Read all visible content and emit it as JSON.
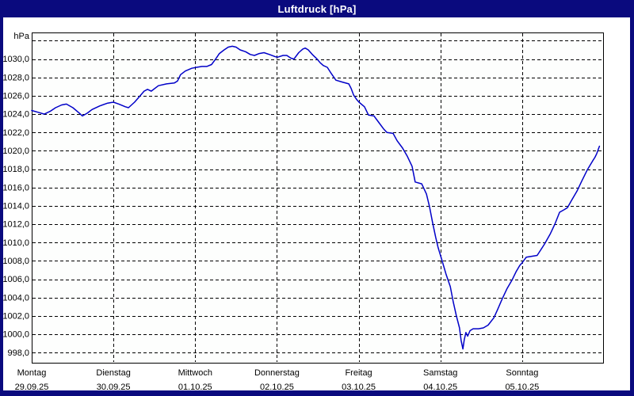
{
  "window": {
    "title": "Luftdruck [hPa]"
  },
  "axis": {
    "unit_label": "hPa",
    "y_tick_labels": [
      "1030,0",
      "1028,0",
      "1026,0",
      "1024,0",
      "1022,0",
      "1020,0",
      "1018,0",
      "1016,0",
      "1014,0",
      "1012,0",
      "1010,0",
      "1008,0",
      "1006,0",
      "1004,0",
      "1002,0",
      "1000,0",
      "998,0"
    ],
    "x_days": [
      {
        "name": "Montag",
        "date": "29.09.25"
      },
      {
        "name": "Dienstag",
        "date": "30.09.25"
      },
      {
        "name": "Mittwoch",
        "date": "01.10.25"
      },
      {
        "name": "Donnerstag",
        "date": "02.10.25"
      },
      {
        "name": "Freitag",
        "date": "03.10.25"
      },
      {
        "name": "Samstag",
        "date": "04.10.25"
      },
      {
        "name": "Sonntag",
        "date": "05.10.25"
      }
    ]
  },
  "chart_data": {
    "type": "line",
    "title": "Luftdruck [hPa]",
    "ylabel": "hPa",
    "x_unit": "hours since Montag 29.09.25 00:00",
    "xlim": [
      0,
      168
    ],
    "ylim": [
      996.9,
      1032.9
    ],
    "y_gridlines": [
      998,
      1000,
      1002,
      1004,
      1006,
      1008,
      1010,
      1012,
      1014,
      1016,
      1018,
      1020,
      1022,
      1024,
      1026,
      1028,
      1030,
      1032
    ],
    "x_gridlines_hours": [
      24,
      48,
      72,
      96,
      120,
      144
    ],
    "grid_on": true,
    "legend": "none",
    "line_color": "#0000c8",
    "title_bar_color": "#0a0a7e",
    "plot_bg_color": "#fdfefd",
    "points": [
      [
        0,
        1024.4
      ],
      [
        1.9,
        1024.2
      ],
      [
        3.7,
        1024.0
      ],
      [
        5.4,
        1024.3
      ],
      [
        7,
        1024.7
      ],
      [
        8.8,
        1025.0
      ],
      [
        10.2,
        1025.1
      ],
      [
        12.1,
        1024.7
      ],
      [
        14,
        1024.1
      ],
      [
        14.9,
        1023.8
      ],
      [
        16.3,
        1024.1
      ],
      [
        17.7,
        1024.5
      ],
      [
        20,
        1024.9
      ],
      [
        22.3,
        1025.2
      ],
      [
        24,
        1025.3
      ],
      [
        25.6,
        1025.1
      ],
      [
        27.5,
        1024.8
      ],
      [
        28.4,
        1024.7
      ],
      [
        30.2,
        1025.3
      ],
      [
        31.6,
        1025.9
      ],
      [
        33,
        1026.5
      ],
      [
        34,
        1026.7
      ],
      [
        35.1,
        1026.5
      ],
      [
        37.2,
        1027.1
      ],
      [
        39.6,
        1027.3
      ],
      [
        41.9,
        1027.4
      ],
      [
        42.8,
        1027.6
      ],
      [
        43.7,
        1028.3
      ],
      [
        45.1,
        1028.7
      ],
      [
        47,
        1029.0
      ],
      [
        48.4,
        1029.1
      ],
      [
        50,
        1029.2
      ],
      [
        51.4,
        1029.2
      ],
      [
        52.8,
        1029.4
      ],
      [
        54,
        1030.0
      ],
      [
        55.1,
        1030.6
      ],
      [
        56.5,
        1031.0
      ],
      [
        57.7,
        1031.3
      ],
      [
        58.9,
        1031.4
      ],
      [
        60,
        1031.3
      ],
      [
        61.2,
        1031.0
      ],
      [
        62.8,
        1030.8
      ],
      [
        64.2,
        1030.5
      ],
      [
        65.4,
        1030.4
      ],
      [
        66.8,
        1030.6
      ],
      [
        68.2,
        1030.7
      ],
      [
        69.8,
        1030.5
      ],
      [
        71.2,
        1030.3
      ],
      [
        72.1,
        1030.2
      ],
      [
        73.8,
        1030.4
      ],
      [
        74.9,
        1030.4
      ],
      [
        76.1,
        1030.1
      ],
      [
        77,
        1030.0
      ],
      [
        78.4,
        1030.7
      ],
      [
        79.6,
        1031.1
      ],
      [
        80.3,
        1031.2
      ],
      [
        81.2,
        1031.0
      ],
      [
        82.4,
        1030.5
      ],
      [
        83.8,
        1030.0
      ],
      [
        84.7,
        1029.6
      ],
      [
        85.6,
        1029.3
      ],
      [
        86.8,
        1029.1
      ],
      [
        88,
        1028.4
      ],
      [
        89.3,
        1027.7
      ],
      [
        91.2,
        1027.5
      ],
      [
        93.1,
        1027.3
      ],
      [
        93.8,
        1026.8
      ],
      [
        94.5,
        1026.1
      ],
      [
        95.4,
        1025.6
      ],
      [
        96.1,
        1025.3
      ],
      [
        97.7,
        1024.8
      ],
      [
        98.9,
        1023.9
      ],
      [
        100.5,
        1023.8
      ],
      [
        101.9,
        1023.1
      ],
      [
        103.3,
        1022.4
      ],
      [
        104.3,
        1022.0
      ],
      [
        106.1,
        1021.9
      ],
      [
        107.3,
        1021.1
      ],
      [
        108.9,
        1020.3
      ],
      [
        110.3,
        1019.4
      ],
      [
        111.7,
        1018.3
      ],
      [
        112.6,
        1016.6
      ],
      [
        114.5,
        1016.4
      ],
      [
        115.9,
        1015.3
      ],
      [
        116.8,
        1013.9
      ],
      [
        117.7,
        1012.2
      ],
      [
        118.6,
        1010.6
      ],
      [
        119.3,
        1009.5
      ],
      [
        120.5,
        1008.0
      ],
      [
        121.7,
        1006.5
      ],
      [
        122.9,
        1005.2
      ],
      [
        123.8,
        1003.5
      ],
      [
        124.7,
        1002.0
      ],
      [
        125.6,
        1000.7
      ],
      [
        126.1,
        999.3
      ],
      [
        126.6,
        998.4
      ],
      [
        127,
        999.4
      ],
      [
        127.5,
        1000.2
      ],
      [
        128,
        999.8
      ],
      [
        128.7,
        1000.4
      ],
      [
        129.6,
        1000.6
      ],
      [
        131.2,
        1000.6
      ],
      [
        132.6,
        1000.7
      ],
      [
        134,
        1001.0
      ],
      [
        135.7,
        1001.8
      ],
      [
        136.8,
        1002.7
      ],
      [
        138.2,
        1003.9
      ],
      [
        139.6,
        1005.0
      ],
      [
        141,
        1005.9
      ],
      [
        142.2,
        1006.8
      ],
      [
        143.3,
        1007.5
      ],
      [
        144,
        1007.8
      ],
      [
        145.2,
        1008.4
      ],
      [
        146.8,
        1008.5
      ],
      [
        148.4,
        1008.6
      ],
      [
        150.5,
        1009.8
      ],
      [
        152.2,
        1010.9
      ],
      [
        153.6,
        1012.0
      ],
      [
        155,
        1013.3
      ],
      [
        156.4,
        1013.6
      ],
      [
        157.3,
        1013.8
      ],
      [
        158.5,
        1014.6
      ],
      [
        160.1,
        1015.6
      ],
      [
        161.5,
        1016.7
      ],
      [
        163.1,
        1017.9
      ],
      [
        164.7,
        1018.9
      ],
      [
        165.4,
        1019.3
      ],
      [
        165.9,
        1019.7
      ],
      [
        166.4,
        1020.2
      ],
      [
        166.7,
        1020.5
      ]
    ]
  }
}
